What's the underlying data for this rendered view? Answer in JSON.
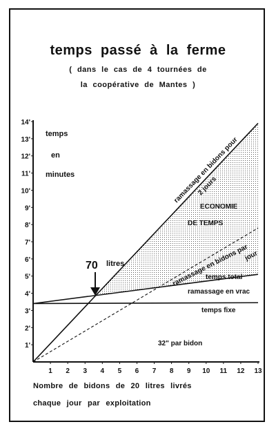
{
  "header": {
    "title": "temps passé à la ferme",
    "subtitle_1": "( dans le cas de 4 tournées de",
    "subtitle_2": "la coopérative de Mantes )"
  },
  "axes": {
    "ylabel_1": "temps",
    "ylabel_2": "en",
    "ylabel_3": "minutes",
    "xlabel_1": "Nombre de bidons de 20 litres livrés",
    "xlabel_2": "chaque jour par exploitation"
  },
  "annotations": {
    "economie_1": "ECONOMIE",
    "economie_2": "DE TEMPS",
    "seventy": "70",
    "litres": "litres",
    "par_bidon": "32\" par bidon"
  },
  "chart_data": {
    "type": "line",
    "xlim": [
      0,
      13
    ],
    "ylim": [
      0,
      14
    ],
    "x_ticks": [
      "1",
      "2",
      "3",
      "4",
      "5",
      "6",
      "7",
      "8",
      "9",
      "10",
      "11",
      "12",
      "13"
    ],
    "y_ticks": [
      "1'",
      "2'",
      "3'",
      "4'",
      "5'",
      "6'",
      "7'",
      "8'",
      "9'",
      "10'",
      "11'",
      "12'",
      "13'",
      "14'"
    ],
    "grid": false,
    "series": [
      {
        "name": "ramassage en bidons pour 2 jours",
        "points": [
          [
            0,
            0
          ],
          [
            13,
            13.9
          ]
        ]
      },
      {
        "name": "ramassage en bidons par jour",
        "points": [
          [
            0,
            0
          ],
          [
            13,
            7.8
          ]
        ]
      },
      {
        "name": "ramassage en vrac — temps total",
        "points": [
          [
            0,
            3.4
          ],
          [
            13,
            5.1
          ]
        ]
      },
      {
        "name": "temps fixe",
        "points": [
          [
            0,
            3.4
          ],
          [
            13,
            3.45
          ]
        ]
      }
    ],
    "shaded_region": "ECONOMIE DE TEMPS",
    "annotation_x": 3.5
  }
}
